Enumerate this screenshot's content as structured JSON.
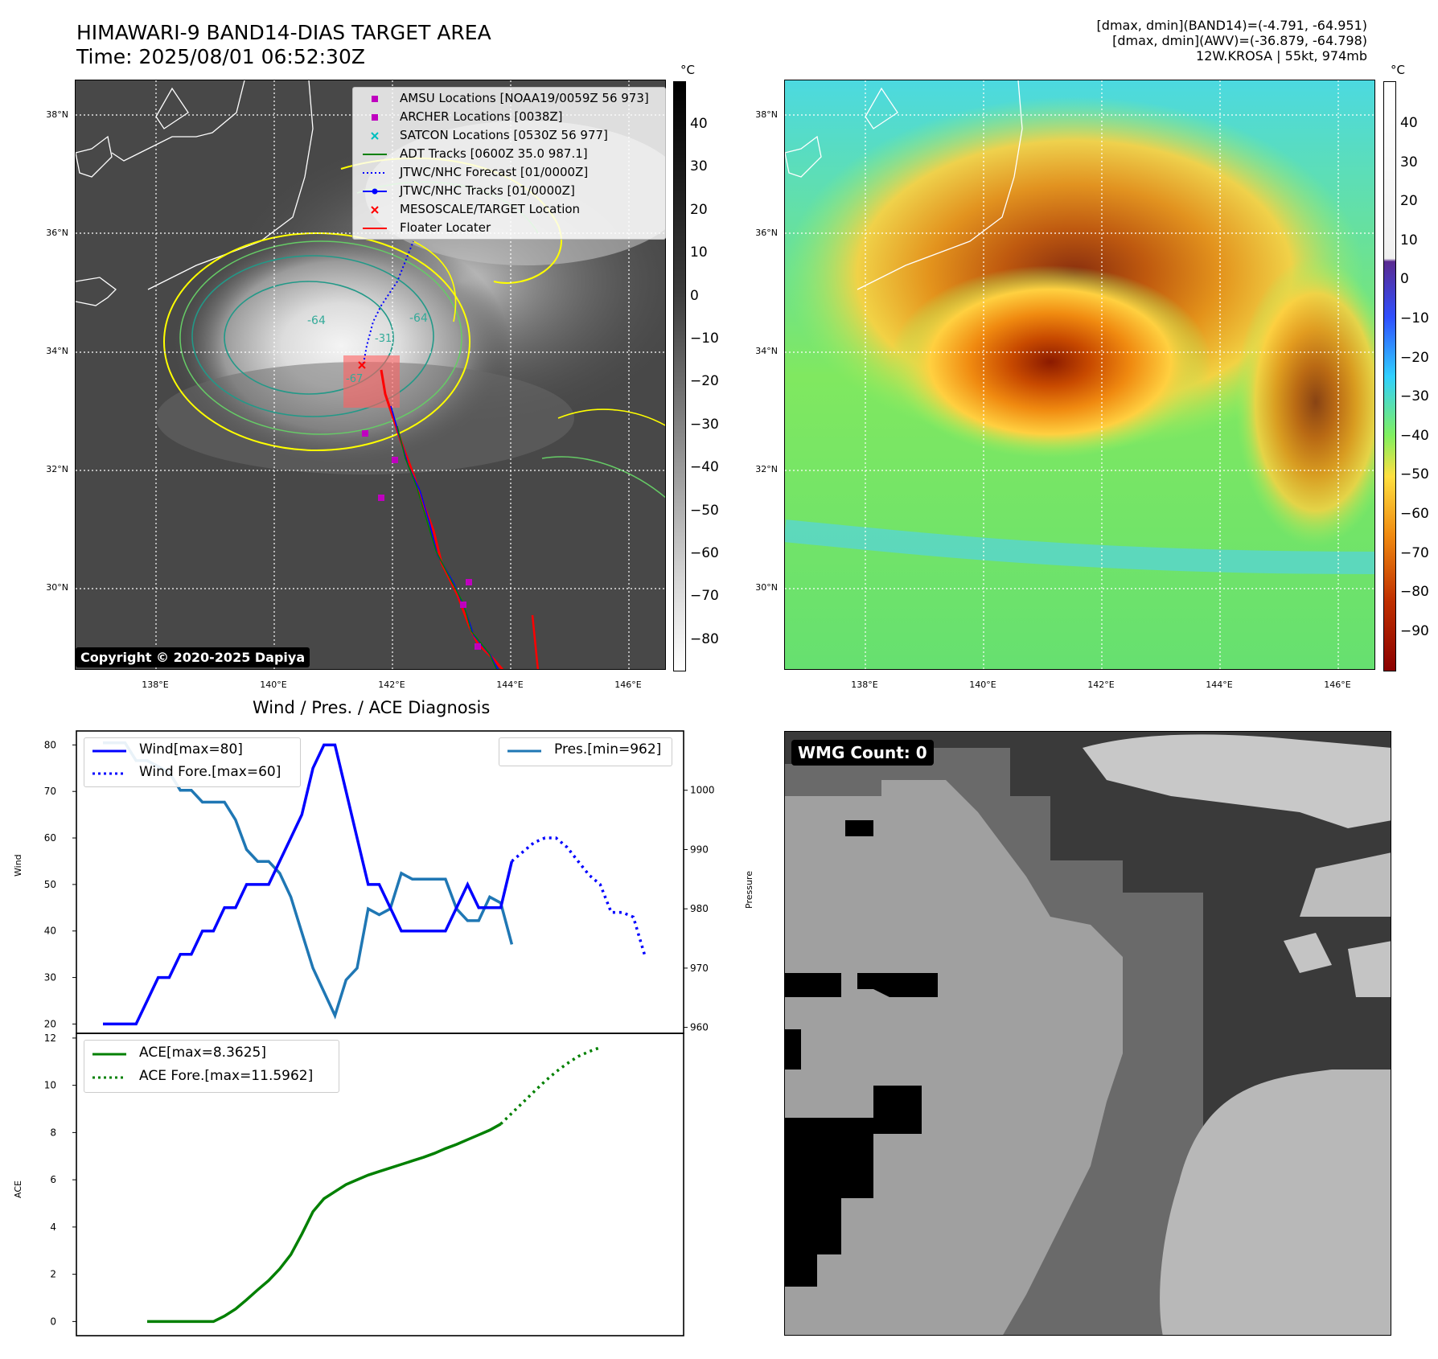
{
  "header": {
    "title_line1": "HIMAWARI-9 BAND14-DIAS TARGET AREA",
    "title_line2": "Time: 2025/08/01 06:52:30Z",
    "info_line1": "[dmax, dmin](BAND14)=(-4.791, -64.951)",
    "info_line2": "[dmax, dmin](AWV)=(-36.879, -64.798)",
    "info_line3": "12W.KROSA | 55kt, 974mb"
  },
  "map": {
    "lat_labels": [
      "38°N",
      "36°N",
      "34°N",
      "32°N",
      "30°N"
    ],
    "lon_labels": [
      "138°E",
      "140°E",
      "142°E",
      "144°E",
      "146°E"
    ],
    "copyright": "Copyright © 2020-2025 Dapiya",
    "contour_labels": [
      "-64",
      "-64",
      "-31",
      "-67"
    ],
    "legend": [
      {
        "label": "AMSU Locations [NOAA19/0059Z 56 973]",
        "symbol": "square",
        "color": "#bf00bf"
      },
      {
        "label": "ARCHER Locations [0038Z]",
        "symbol": "square",
        "color": "#bf00bf"
      },
      {
        "label": "SATCON Locations [0530Z 56 977]",
        "symbol": "x",
        "color": "#00bfbf"
      },
      {
        "label": "ADT Tracks [0600Z 35.0 987.1]",
        "symbol": "line",
        "color": "#008000"
      },
      {
        "label": "JTWC/NHC Forecast [01/0000Z]",
        "symbol": "dotted",
        "color": "#0000ff"
      },
      {
        "label": "JTWC/NHC Tracks [01/0000Z]",
        "symbol": "line-dot",
        "color": "#0000ff"
      },
      {
        "label": "MESOSCALE/TARGET Location",
        "symbol": "x",
        "color": "#ff0000"
      },
      {
        "label": "Floater Locater",
        "symbol": "line",
        "color": "#ff0000"
      }
    ]
  },
  "colorbar_left": {
    "unit": "°C",
    "ticks": [
      "40",
      "30",
      "20",
      "10",
      "0",
      "−10",
      "−20",
      "−30",
      "−40",
      "−50",
      "−60",
      "−70",
      "−80"
    ]
  },
  "colorbar_right": {
    "unit": "°C",
    "ticks": [
      "40",
      "30",
      "20",
      "10",
      "0",
      "−10",
      "−20",
      "−30",
      "−40",
      "−50",
      "−60",
      "−70",
      "−80",
      "−90"
    ]
  },
  "diagnosis": {
    "title": "Wind / Pres. / ACE Diagnosis",
    "wind_label": "Wind",
    "pres_label": "Pressure",
    "ace_label": "ACE"
  },
  "wmg": {
    "label": "WMG Count: 0"
  },
  "chart_data": [
    {
      "type": "line",
      "title": "Wind / Pres. / ACE Diagnosis",
      "ylabel": "Wind",
      "ylim": [
        18,
        83
      ],
      "y2label": "Pressure",
      "y2lim": [
        959,
        1010
      ],
      "yticks": [
        "80",
        "70",
        "60",
        "50",
        "40",
        "30",
        "20"
      ],
      "y2ticks": [
        "1000",
        "990",
        "980",
        "970",
        "960"
      ],
      "series": [
        {
          "name": "Wind[max=80]",
          "style": "solid",
          "color": "#0000ff",
          "axis": "left",
          "values": [
            20,
            20,
            20,
            20,
            25,
            30,
            30,
            35,
            35,
            40,
            40,
            45,
            45,
            50,
            50,
            50,
            55,
            60,
            65,
            75,
            80,
            80,
            70,
            60,
            50,
            50,
            45,
            40,
            40,
            40,
            40,
            40,
            45,
            50,
            45,
            45,
            45,
            55
          ]
        },
        {
          "name": "Wind Fore.[max=60]",
          "style": "dotted",
          "color": "#0000ff",
          "axis": "left",
          "values": [
            55,
            57,
            59,
            60,
            60,
            58,
            55,
            52,
            50,
            44,
            44,
            43,
            35
          ]
        },
        {
          "name": "Pres.[min=962]",
          "style": "solid",
          "color": "#1f77b4",
          "axis": "right",
          "values": [
            1008,
            1008,
            1008,
            1005,
            1005,
            1004,
            1003,
            1000,
            1000,
            998,
            998,
            998,
            995,
            990,
            988,
            988,
            986,
            982,
            976,
            970,
            966,
            962,
            968,
            970,
            980,
            979,
            980,
            986,
            985,
            985,
            985,
            985,
            980,
            978,
            978,
            982,
            981,
            974
          ]
        }
      ]
    },
    {
      "type": "line",
      "ylabel": "ACE",
      "ylim": [
        -0.6,
        12.2
      ],
      "yticks": [
        "12",
        "10",
        "8",
        "6",
        "4",
        "2",
        "0"
      ],
      "series": [
        {
          "name": "ACE[max=8.3625]",
          "style": "solid",
          "color": "#008000",
          "values": [
            0,
            0,
            0,
            0,
            0,
            0,
            0,
            0.23,
            0.53,
            0.92,
            1.34,
            1.74,
            2.23,
            2.83,
            3.7,
            4.65,
            5.2,
            5.5,
            5.8,
            6.0,
            6.2,
            6.35,
            6.5,
            6.65,
            6.8,
            6.95,
            7.12,
            7.32,
            7.5,
            7.7,
            7.9,
            8.1,
            8.36
          ]
        },
        {
          "name": "ACE Fore.[max=11.5962]",
          "style": "dotted",
          "color": "#008000",
          "values": [
            8.36,
            8.82,
            9.27,
            9.73,
            10.17,
            10.57,
            10.92,
            11.22,
            11.43,
            11.6
          ]
        }
      ]
    }
  ]
}
